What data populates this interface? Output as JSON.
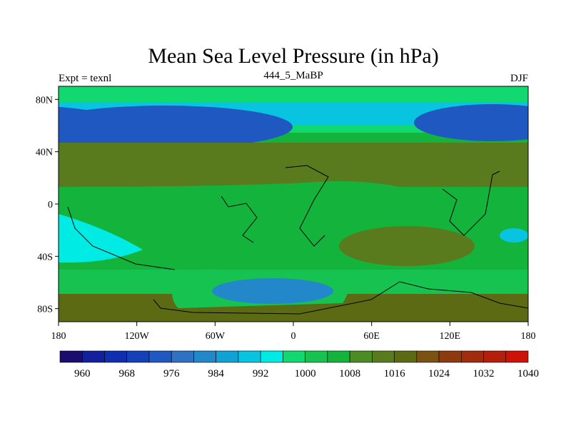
{
  "chart_data": {
    "type": "heatmap",
    "title": "Mean Sea Level Pressure (in hPa)",
    "subtitle_left": "Expt = texnl",
    "subtitle_center": "444_5_MaBP",
    "subtitle_right": "DJF",
    "xlabels": [
      "180",
      "120W",
      "60W",
      "0",
      "60E",
      "120E",
      "180"
    ],
    "ylabels": [
      "80N",
      "40N",
      "0",
      "40S",
      "80S"
    ],
    "lon_range": [
      -180,
      180
    ],
    "lat_range": [
      -90,
      90
    ],
    "colorbar": {
      "levels": [
        960,
        964,
        968,
        972,
        976,
        980,
        984,
        988,
        992,
        996,
        1000,
        1004,
        1008,
        1012,
        1016,
        1020,
        1024,
        1028,
        1032,
        1036,
        1040
      ],
      "labels": [
        "960",
        "968",
        "976",
        "984",
        "992",
        "1000",
        "1008",
        "1016",
        "1024",
        "1032",
        "1040"
      ],
      "colors": [
        "#1a0d6e",
        "#12209c",
        "#0f2fb0",
        "#1541b8",
        "#1f58c0",
        "#2f72c4",
        "#2288c9",
        "#10a2d5",
        "#08c4e0",
        "#00ebe3",
        "#12d870",
        "#16c350",
        "#14b43c",
        "#4b8d24",
        "#5a7a1e",
        "#5c6a14",
        "#7a5214",
        "#8e3a10",
        "#a02c0c",
        "#b51e0a",
        "#cf1208"
      ]
    },
    "background_value": 1010,
    "fields": [
      {
        "region": "arctic",
        "value": 1002
      },
      {
        "region": "high-lat-band-north",
        "value": 995
      },
      {
        "region": "aleutian-low",
        "value": 976
      },
      {
        "region": "icelandic-low",
        "value": 978
      },
      {
        "region": "subtropical-high-north",
        "value": 1018
      },
      {
        "region": "south-pacific-trough",
        "value": 998
      },
      {
        "region": "south-indian-high",
        "value": 1017
      },
      {
        "region": "southern-ocean-belt",
        "value": 1004
      },
      {
        "region": "antarctic-high",
        "value": 1020
      },
      {
        "region": "austral-low",
        "value": 986
      },
      {
        "region": "sw-pacific-low",
        "value": 992
      }
    ]
  }
}
